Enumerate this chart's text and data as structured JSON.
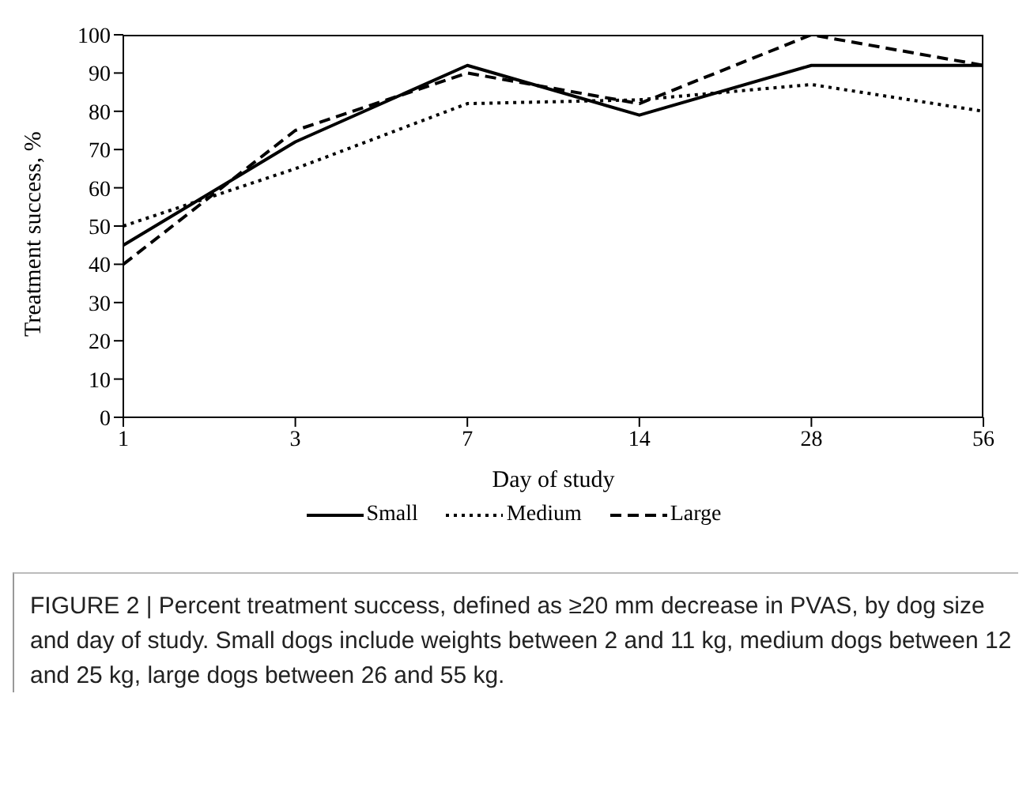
{
  "chart_data": {
    "type": "line",
    "xlabel": "Day of study",
    "ylabel": "Treatment success, %",
    "categories": [
      "1",
      "3",
      "7",
      "14",
      "28",
      "56"
    ],
    "series": [
      {
        "name": "Small",
        "color": "#000000",
        "line_style": "solid",
        "values": [
          45,
          72,
          92,
          79,
          92,
          92
        ]
      },
      {
        "name": "Medium",
        "color": "#000000",
        "line_style": "dotted",
        "values": [
          50,
          65,
          82,
          83,
          87,
          80
        ]
      },
      {
        "name": "Large",
        "color": "#000000",
        "line_style": "dashed",
        "values": [
          40,
          75,
          90,
          82,
          100,
          92
        ]
      }
    ],
    "ylim": [
      0,
      100
    ],
    "yticks": [
      0,
      10,
      20,
      30,
      40,
      50,
      60,
      70,
      80,
      90,
      100
    ],
    "grid": false,
    "legend": "bottom",
    "marker": "none",
    "annotations": [
      "FIGURE 2 | Percent treatment success, defined as ≥20 mm decrease in PVAS, by dog size and day of study. Small dogs include weights between 2 and 11 kg, medium dogs between 12 and 25 kg, large dogs between 26 and 55 kg."
    ]
  }
}
